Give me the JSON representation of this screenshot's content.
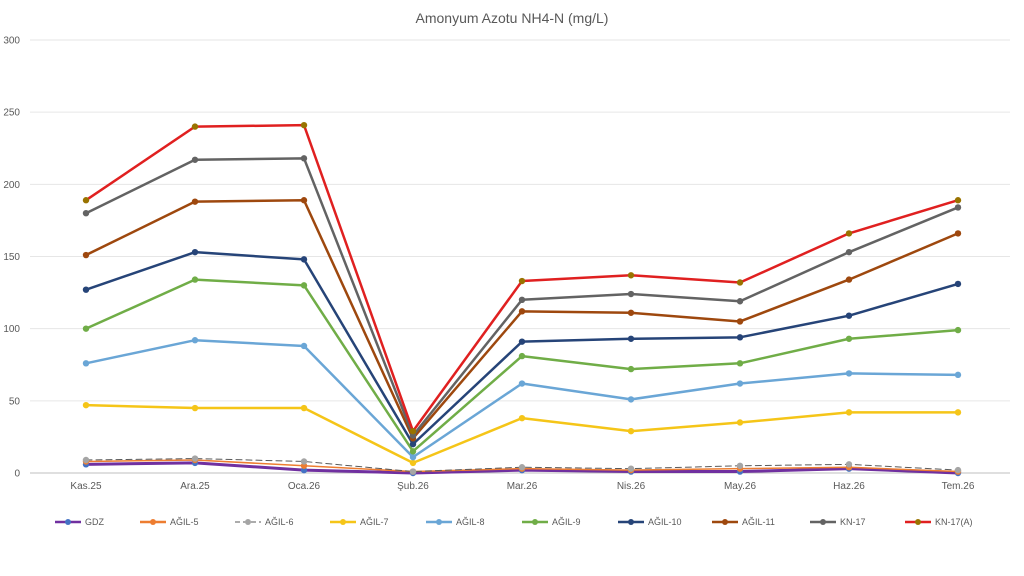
{
  "chart_data": {
    "type": "line",
    "title": "Amonyum Azotu NH4-N (mg/L)",
    "xlabel": "",
    "ylabel": "",
    "ylim": [
      0,
      300
    ],
    "yticks": [
      0,
      50,
      100,
      150,
      200,
      250,
      300
    ],
    "grid": true,
    "legend_position": "bottom",
    "categories": [
      "Kas.25",
      "Ara.25",
      "Oca.26",
      "Şub.26",
      "Mar.26",
      "Nis.26",
      "May.26",
      "Haz.26",
      "Tem.26"
    ],
    "series": [
      {
        "name": "GDZ",
        "color": "#7030a0",
        "line_color": "#7030a0",
        "marker_color": "#4472c4",
        "dashed": false,
        "width": 3,
        "values": [
          6,
          7,
          2,
          0,
          2,
          1,
          1,
          3,
          0
        ]
      },
      {
        "name": "AĞIL-5",
        "color": "#ed7d31",
        "line_color": "#ed7d31",
        "marker_color": "#ed7d31",
        "dashed": false,
        "width": 1.5,
        "values": [
          8,
          9,
          5,
          1,
          3,
          2,
          3,
          4,
          1
        ]
      },
      {
        "name": "AĞIL-6",
        "color": "#a5a5a5",
        "line_color": "#595959",
        "marker_color": "#a5a5a5",
        "dashed": true,
        "width": 1,
        "values": [
          9,
          10,
          8,
          1,
          4,
          3,
          5,
          6,
          2
        ]
      },
      {
        "name": "AĞIL-7",
        "color": "#f5c518",
        "line_color": "#f5c518",
        "marker_color": "#f5c518",
        "dashed": false,
        "width": 2.5,
        "values": [
          47,
          45,
          45,
          7,
          38,
          29,
          35,
          42,
          42
        ]
      },
      {
        "name": "AĞIL-8",
        "color": "#6aa6d6",
        "line_color": "#6aa6d6",
        "marker_color": "#6aa6d6",
        "dashed": false,
        "width": 2.5,
        "values": [
          76,
          92,
          88,
          11,
          62,
          51,
          62,
          69,
          68
        ]
      },
      {
        "name": "AĞIL-9",
        "color": "#70ad47",
        "line_color": "#70ad47",
        "marker_color": "#70ad47",
        "dashed": false,
        "width": 2.5,
        "values": [
          100,
          134,
          130,
          15,
          81,
          72,
          76,
          93,
          99
        ]
      },
      {
        "name": "AĞIL-10",
        "color": "#264478",
        "line_color": "#264478",
        "marker_color": "#264478",
        "dashed": false,
        "width": 2.5,
        "values": [
          127,
          153,
          148,
          20,
          91,
          93,
          94,
          109,
          131
        ]
      },
      {
        "name": "AĞIL-11",
        "color": "#9e480e",
        "line_color": "#9e480e",
        "marker_color": "#9e480e",
        "dashed": false,
        "width": 2.5,
        "values": [
          151,
          188,
          189,
          24,
          112,
          111,
          105,
          134,
          166
        ]
      },
      {
        "name": "KN-17",
        "color": "#636363",
        "line_color": "#636363",
        "marker_color": "#636363",
        "dashed": false,
        "width": 2.5,
        "values": [
          180,
          217,
          218,
          26,
          120,
          124,
          119,
          153,
          184
        ]
      },
      {
        "name": "KN-17(A)",
        "color": "#e02020",
        "line_color": "#e02020",
        "marker_color": "#997300",
        "dashed": false,
        "width": 2.5,
        "values": [
          189,
          240,
          241,
          29,
          133,
          137,
          132,
          166,
          189
        ]
      }
    ]
  }
}
